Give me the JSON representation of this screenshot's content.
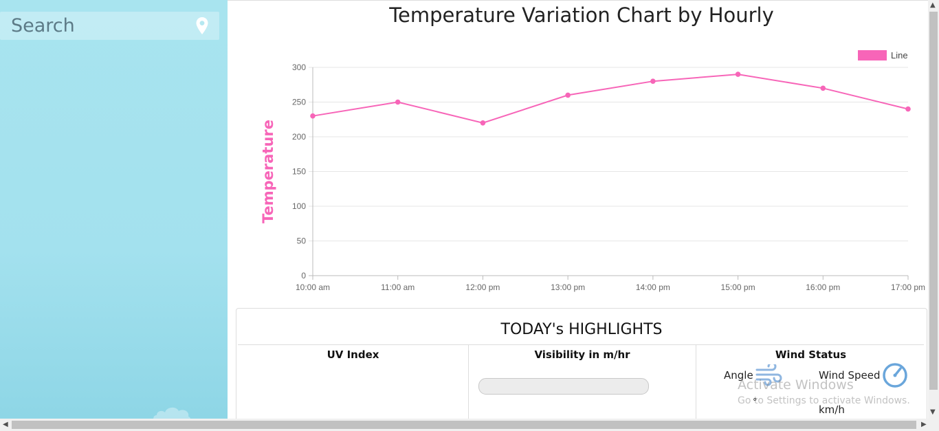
{
  "sidebar": {
    "search": {
      "placeholder": "Search",
      "value": ""
    },
    "icons": {
      "location": "map-pin-icon",
      "cloud": "cloud-icon"
    }
  },
  "chart_data": {
    "type": "line",
    "title": "Temperature Variation Chart by Hourly",
    "ylabel": "Temperature",
    "xlabel": "",
    "categories": [
      "10:00 am",
      "11:00 am",
      "12:00 pm",
      "13:00 pm",
      "14:00 pm",
      "15:00 pm",
      "16:00 pm",
      "17:00 pm"
    ],
    "series": [
      {
        "name": "Line",
        "values": [
          230,
          250,
          220,
          260,
          280,
          290,
          270,
          240
        ],
        "color": "#f765b8"
      }
    ],
    "ylim": [
      0,
      300
    ],
    "yticks": [
      "0",
      "50",
      "100",
      "150",
      "200",
      "250",
      "300"
    ],
    "legend": "top-right",
    "grid": true
  },
  "highlights": {
    "title": "TODAY's HIGHLIGHTS",
    "uv": {
      "title": "UV Index"
    },
    "visibility": {
      "title": "Visibility in m/hr",
      "progress": 0
    },
    "wind": {
      "title": "Wind Status",
      "angle_label": "Angle",
      "angle_unit": "°",
      "speed_label": "Wind Speed",
      "speed_unit": "km/h",
      "icons": {
        "angle": "wind-icon",
        "speed": "gauge-icon"
      }
    }
  },
  "watermark": {
    "line1": "Activate Windows",
    "line2": "Go to Settings to activate Windows."
  }
}
